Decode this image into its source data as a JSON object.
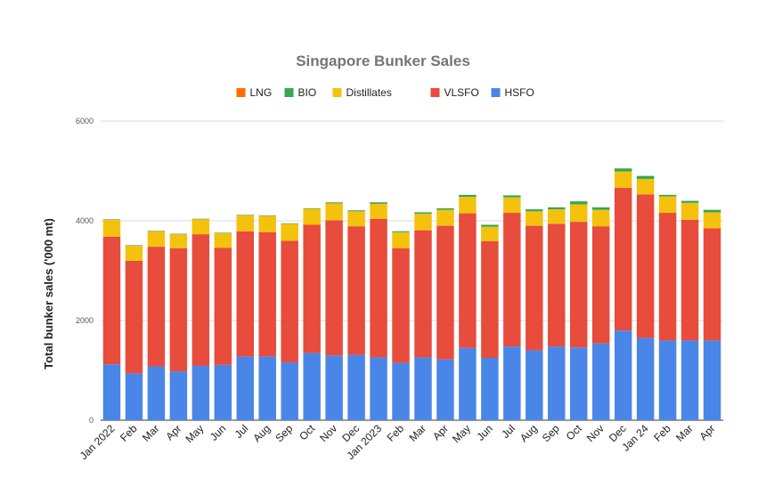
{
  "chart_data": {
    "type": "bar",
    "stacked": true,
    "title": "Singapore Bunker Sales",
    "ylabel": "Total bunker sales ('000 mt)",
    "xlabel": "",
    "ylim": [
      0,
      6000
    ],
    "yticks": [
      0,
      2000,
      4000,
      6000
    ],
    "grid": true,
    "legend_position": "top",
    "categories": [
      "Jan 2022",
      "Feb",
      "Mar",
      "Apr",
      "May",
      "Jun",
      "Jul",
      "Aug",
      "Sep",
      "Oct",
      "Nov",
      "Dec",
      "Jan 2023",
      "Feb",
      "Mar",
      "Apr",
      "May",
      "Jun",
      "Jul",
      "Aug",
      "Sep",
      "Oct",
      "Nov",
      "Dec",
      "Jan 24",
      "Feb",
      "Mar",
      "Apr"
    ],
    "series": [
      {
        "name": "HSFO",
        "color": "#4a86e8",
        "values": [
          1120,
          940,
          1080,
          980,
          1090,
          1110,
          1280,
          1280,
          1160,
          1350,
          1300,
          1310,
          1260,
          1150,
          1260,
          1220,
          1450,
          1250,
          1480,
          1400,
          1480,
          1460,
          1540,
          1800,
          1650,
          1600,
          1600,
          1600
        ]
      },
      {
        "name": "VLSFO",
        "color": "#e74c3c",
        "values": [
          2560,
          2260,
          2400,
          2470,
          2640,
          2350,
          2510,
          2490,
          2440,
          2570,
          2710,
          2580,
          2780,
          2300,
          2550,
          2680,
          2700,
          2340,
          2680,
          2500,
          2460,
          2520,
          2350,
          2860,
          2880,
          2560,
          2420,
          2250
        ]
      },
      {
        "name": "Distillates",
        "color": "#f4c20d",
        "values": [
          340,
          300,
          310,
          280,
          300,
          290,
          320,
          330,
          340,
          320,
          340,
          300,
          300,
          320,
          330,
          320,
          330,
          290,
          310,
          290,
          290,
          350,
          330,
          330,
          310,
          330,
          340,
          320
        ]
      },
      {
        "name": "BIO",
        "color": "#34a853",
        "values": [
          10,
          10,
          10,
          10,
          10,
          10,
          10,
          10,
          10,
          10,
          20,
          20,
          30,
          20,
          30,
          30,
          40,
          40,
          40,
          40,
          40,
          60,
          50,
          60,
          60,
          30,
          40,
          50
        ]
      },
      {
        "name": "LNG",
        "color": "#ff6d01",
        "values": [
          0,
          0,
          0,
          0,
          0,
          0,
          0,
          0,
          0,
          0,
          0,
          0,
          0,
          0,
          0,
          0,
          0,
          0,
          0,
          0,
          0,
          0,
          0,
          0,
          0,
          0,
          0,
          0
        ]
      }
    ],
    "legend_order": [
      "LNG",
      "BIO",
      "Distillates",
      "VLSFO",
      "HSFO"
    ],
    "colors": {
      "grid": "#d9d9d9",
      "axis": "#333333",
      "title": "#757575",
      "text": "#222222"
    }
  }
}
